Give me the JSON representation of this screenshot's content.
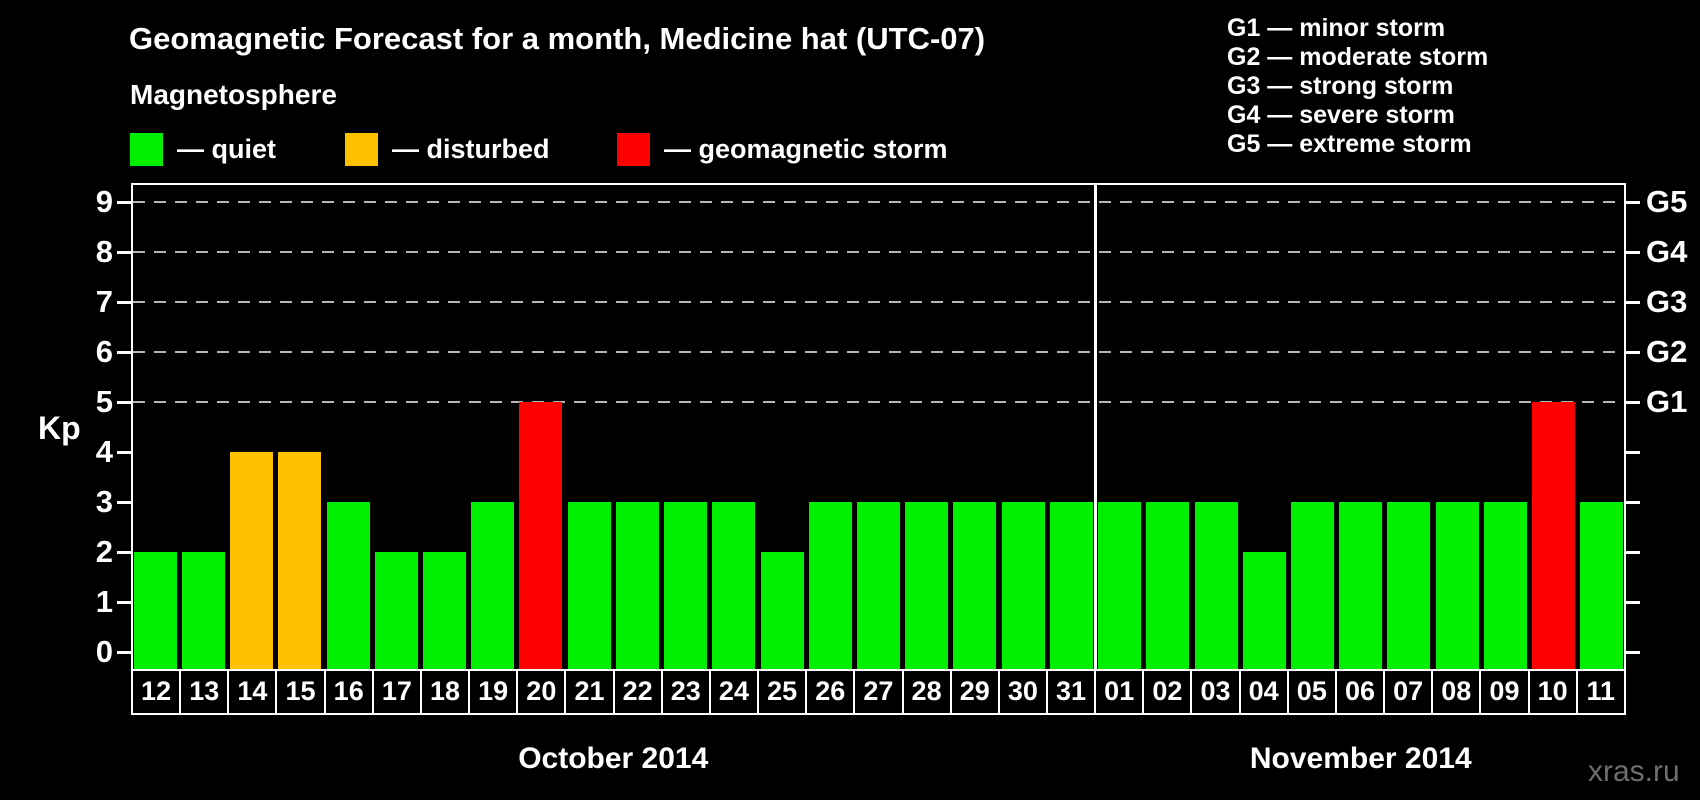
{
  "title": "Geomagnetic Forecast for a month, Medicine hat (UTC-07)",
  "magnetosphere_legend": {
    "heading": "Magnetosphere",
    "items": [
      {
        "name": "quiet",
        "label": "— quiet",
        "color": "#00ee00"
      },
      {
        "name": "disturbed",
        "label": "— disturbed",
        "color": "#ffc000"
      },
      {
        "name": "storm",
        "label": "— geomagnetic storm",
        "color": "#ff0000"
      }
    ]
  },
  "g_scale_legend": [
    "G1 — minor storm",
    "G2 — moderate storm",
    "G3 — strong storm",
    "G4 — severe storm",
    "G5 — extreme storm"
  ],
  "watermark": "xras.ru",
  "chart_data": {
    "type": "bar",
    "title": "Geomagnetic Forecast for a month, Medicine hat (UTC-07)",
    "ylabel": "Kp",
    "ylim": [
      0,
      9
    ],
    "y_ticks": [
      0,
      1,
      2,
      3,
      4,
      5,
      6,
      7,
      8,
      9
    ],
    "gridlines_at": [
      5,
      6,
      7,
      8,
      9
    ],
    "grid_style": "dashed horizontal lines at storm levels only",
    "legend_position": "top-left",
    "right_axis_labels": [
      {
        "value": 5,
        "label": "G1"
      },
      {
        "value": 6,
        "label": "G2"
      },
      {
        "value": 7,
        "label": "G3"
      },
      {
        "value": 8,
        "label": "G4"
      },
      {
        "value": 9,
        "label": "G5"
      }
    ],
    "categories": [
      "12",
      "13",
      "14",
      "15",
      "16",
      "17",
      "18",
      "19",
      "20",
      "21",
      "22",
      "23",
      "24",
      "25",
      "26",
      "27",
      "28",
      "29",
      "30",
      "31",
      "01",
      "02",
      "03",
      "04",
      "05",
      "06",
      "07",
      "08",
      "09",
      "10",
      "11"
    ],
    "values": [
      2,
      2,
      4,
      4,
      3,
      2,
      2,
      3,
      5,
      3,
      3,
      3,
      3,
      2,
      3,
      3,
      3,
      3,
      3,
      3,
      3,
      3,
      3,
      2,
      3,
      3,
      3,
      3,
      3,
      5,
      3
    ],
    "states": [
      "quiet",
      "quiet",
      "disturbed",
      "disturbed",
      "quiet",
      "quiet",
      "quiet",
      "quiet",
      "storm",
      "quiet",
      "quiet",
      "quiet",
      "quiet",
      "quiet",
      "quiet",
      "quiet",
      "quiet",
      "quiet",
      "quiet",
      "quiet",
      "quiet",
      "quiet",
      "quiet",
      "quiet",
      "quiet",
      "quiet",
      "quiet",
      "quiet",
      "quiet",
      "storm",
      "quiet"
    ],
    "state_colors": {
      "quiet": "#00ee00",
      "disturbed": "#ffc000",
      "storm": "#ff0000"
    },
    "months": [
      {
        "label": "October 2014",
        "columns": 20
      },
      {
        "label": "November 2014",
        "columns": 11
      }
    ]
  }
}
